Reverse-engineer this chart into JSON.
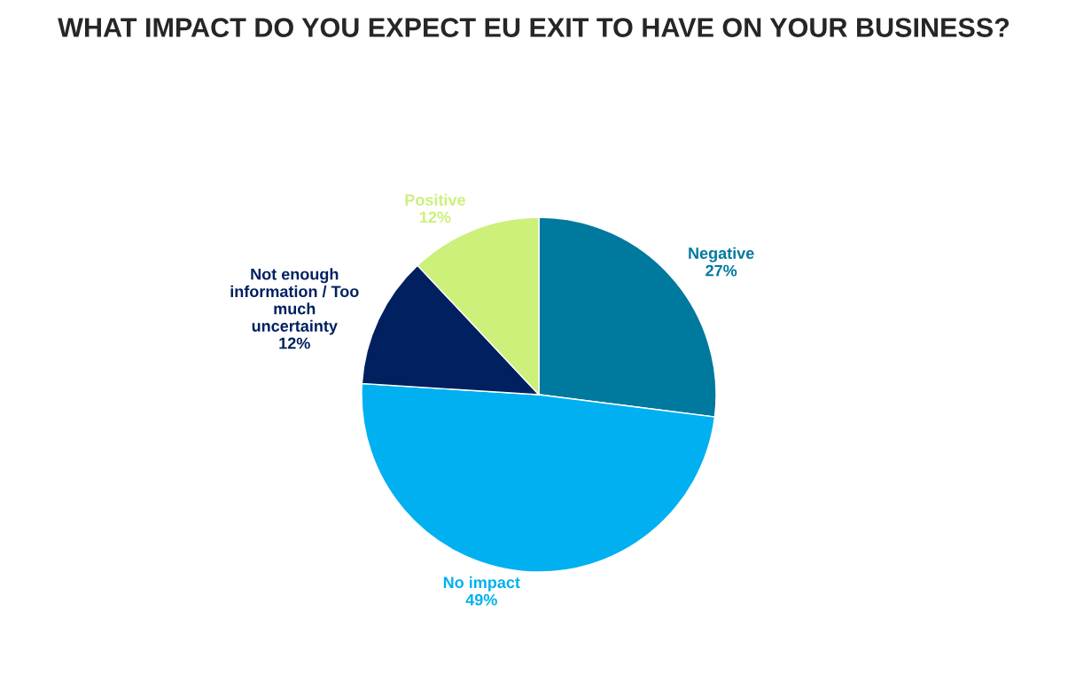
{
  "chart_data": {
    "type": "pie",
    "title": "WHAT IMPACT DO YOU EXPECT EU EXIT TO HAVE ON YOUR BUSINESS?",
    "categories": [
      "Negative",
      "No impact",
      "Not enough\ninformation / Too\nmuch\nuncertainty",
      "Positive"
    ],
    "values": [
      27,
      49,
      12,
      12
    ],
    "value_labels": [
      "27%",
      "49%",
      "12%",
      "12%"
    ],
    "colors": [
      "#00799e",
      "#00b0f0",
      "#002060",
      "#ccf07a"
    ],
    "legend": false
  }
}
